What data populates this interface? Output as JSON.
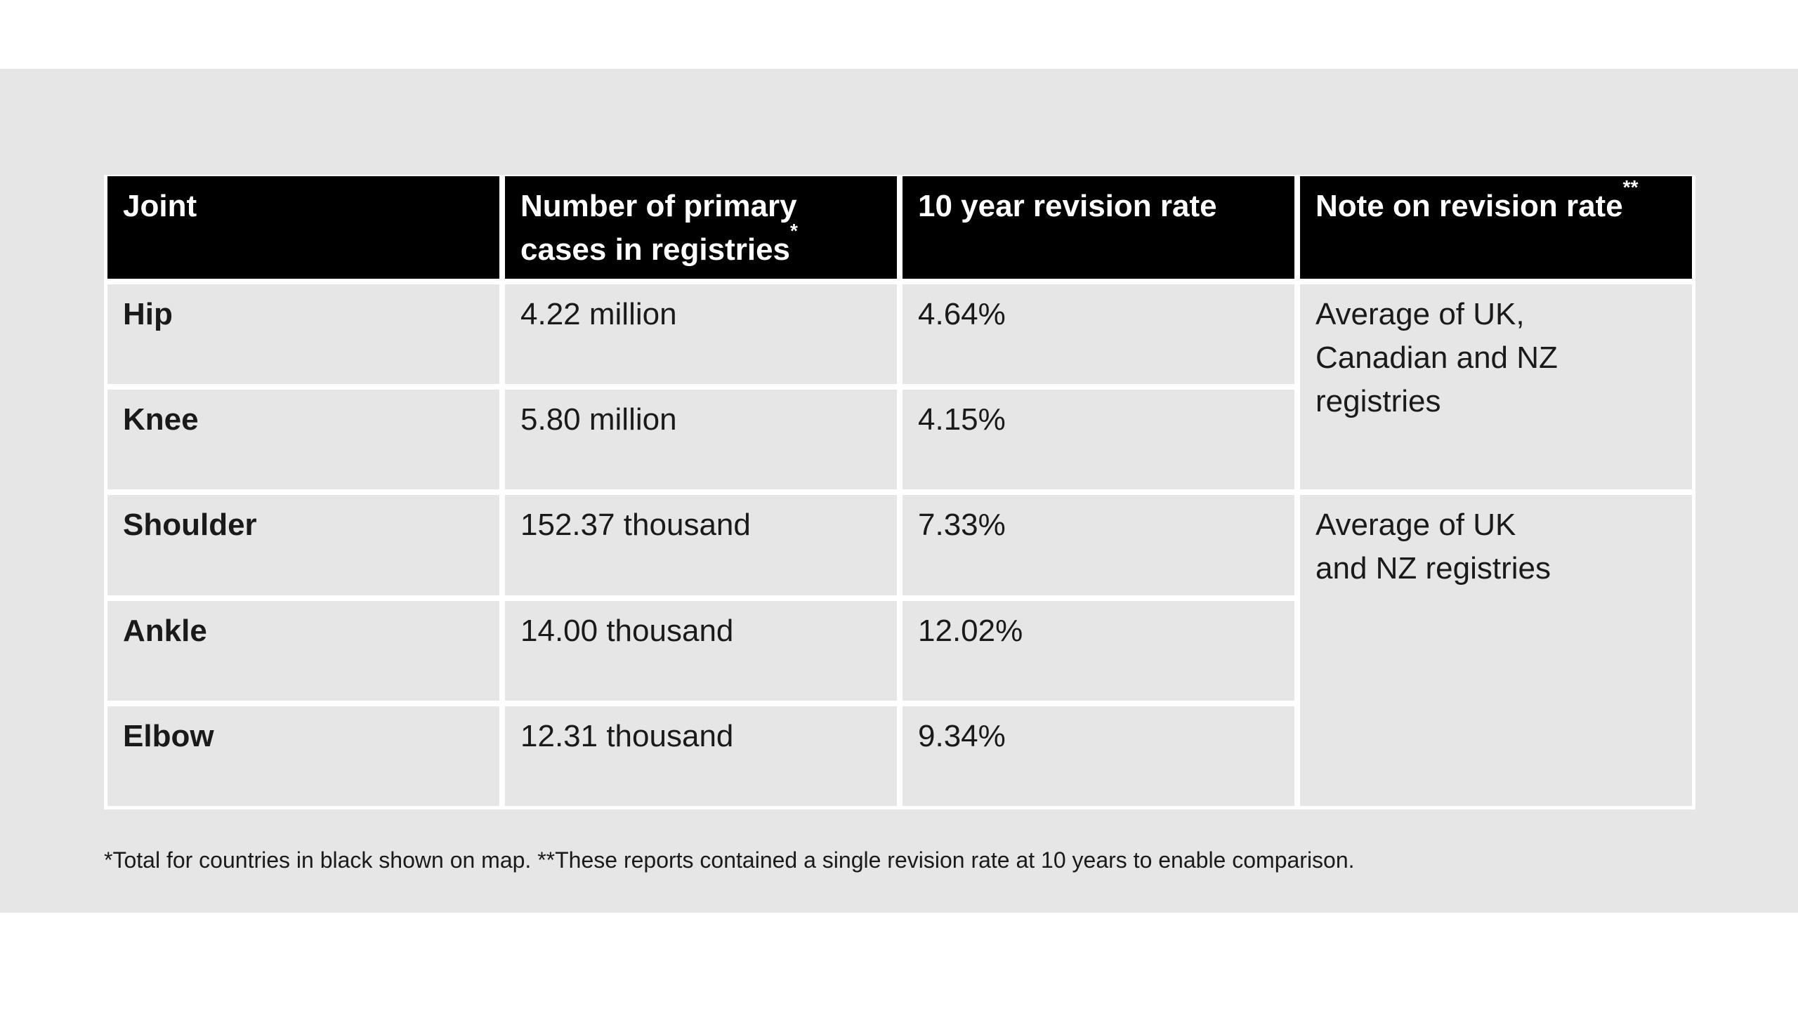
{
  "slide": {
    "band_color": "#e7e6e6",
    "footnote": "*Total for countries in black shown on map. **These reports contained a single revision rate at 10 years to enable comparison."
  },
  "table": {
    "headers": [
      {
        "label": "Joint",
        "sup": ""
      },
      {
        "label": "Number of primary\ncases in registries",
        "sup": "*"
      },
      {
        "label": "10 year revision rate",
        "sup": ""
      },
      {
        "label": "Note on revision rate",
        "sup": "**"
      }
    ],
    "rows": [
      {
        "joint": "Hip",
        "cases": "4.22 million",
        "rate": "4.64%"
      },
      {
        "joint": "Knee",
        "cases": "5.80 million",
        "rate": "4.15%"
      },
      {
        "joint": "Shoulder",
        "cases": "152.37 thousand",
        "rate": "7.33%"
      },
      {
        "joint": "Ankle",
        "cases": "14.00 thousand",
        "rate": "12.02%"
      },
      {
        "joint": "Elbow",
        "cases": "12.31 thousand",
        "rate": "9.34%"
      }
    ],
    "notes": [
      {
        "text": "Average of UK,\nCanadian and NZ\nregistries",
        "spans_joints": "Hip, Knee"
      },
      {
        "text": "Average of UK\nand NZ registries",
        "spans_joints": "Shoulder, Ankle, Elbow"
      }
    ]
  },
  "colors": {
    "header_bg": "#000000",
    "header_text": "#ffffff",
    "cell_bg": "#e7e6e6",
    "body_text": "#1a1a1a",
    "grid_lines": "#ffffff"
  }
}
